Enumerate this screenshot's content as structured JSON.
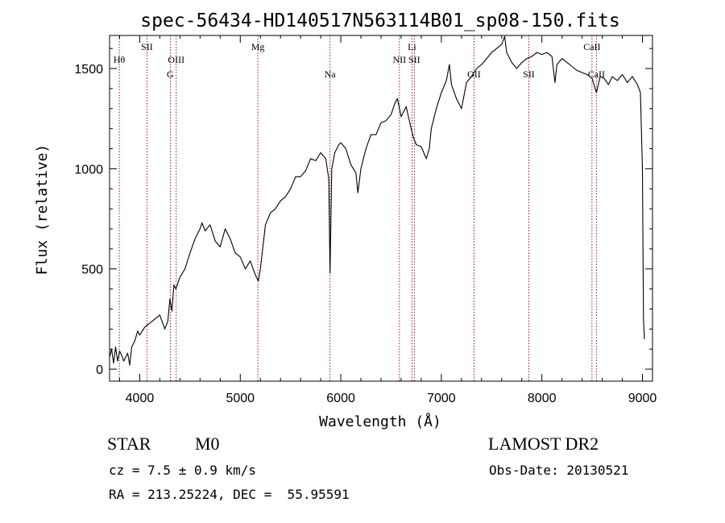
{
  "chart_data": {
    "type": "line",
    "title": "spec-56434-HD140517N563114B01_sp08-150.fits",
    "xlabel": "Wavelength (Å)",
    "ylabel": "Flux (relative)",
    "xlim": [
      3700,
      9100
    ],
    "ylim": [
      -60,
      1665
    ],
    "x_ticks": [
      4000,
      5000,
      6000,
      7000,
      8000,
      9000
    ],
    "x_tick_labels": [
      "4000",
      "5000",
      "6000",
      "7000",
      "8000",
      "9000"
    ],
    "y_ticks": [
      0,
      500,
      1000,
      1500
    ],
    "y_tick_labels": [
      "0",
      "500",
      "1000",
      "1500"
    ],
    "series": [
      {
        "name": "spectrum",
        "x": [
          3700,
          3720,
          3740,
          3760,
          3780,
          3800,
          3820,
          3840,
          3860,
          3880,
          3900,
          3920,
          3950,
          3980,
          4000,
          4050,
          4100,
          4150,
          4200,
          4250,
          4280,
          4300,
          4320,
          4340,
          4360,
          4400,
          4450,
          4500,
          4550,
          4600,
          4620,
          4650,
          4700,
          4750,
          4800,
          4850,
          4900,
          4950,
          5000,
          5050,
          5100,
          5150,
          5180,
          5200,
          5250,
          5300,
          5350,
          5400,
          5450,
          5500,
          5550,
          5600,
          5650,
          5700,
          5750,
          5800,
          5850,
          5880,
          5893,
          5910,
          5940,
          5980,
          6000,
          6050,
          6100,
          6150,
          6170,
          6200,
          6250,
          6300,
          6350,
          6400,
          6450,
          6500,
          6540,
          6563,
          6600,
          6650,
          6700,
          6720,
          6750,
          6800,
          6850,
          6880,
          6900,
          6950,
          7000,
          7050,
          7080,
          7100,
          7150,
          7200,
          7250,
          7300,
          7350,
          7400,
          7450,
          7500,
          7550,
          7600,
          7630,
          7650,
          7700,
          7750,
          7800,
          7850,
          7900,
          7950,
          8000,
          8050,
          8100,
          8130,
          8150,
          8200,
          8250,
          8300,
          8350,
          8400,
          8450,
          8500,
          8542,
          8580,
          8620,
          8662,
          8700,
          8750,
          8800,
          8850,
          8900,
          8950,
          8980,
          9000,
          9010,
          9020
        ],
        "values": [
          60,
          100,
          30,
          110,
          40,
          90,
          70,
          40,
          60,
          80,
          20,
          110,
          140,
          190,
          170,
          210,
          230,
          250,
          270,
          200,
          240,
          350,
          290,
          420,
          400,
          460,
          500,
          580,
          650,
          700,
          730,
          690,
          720,
          640,
          610,
          700,
          650,
          580,
          560,
          500,
          540,
          470,
          440,
          500,
          720,
          780,
          800,
          840,
          860,
          900,
          960,
          960,
          990,
          1050,
          1040,
          1080,
          1050,
          950,
          480,
          1000,
          1080,
          1120,
          1130,
          1100,
          1020,
          980,
          880,
          1000,
          1100,
          1170,
          1170,
          1230,
          1240,
          1270,
          1330,
          1350,
          1260,
          1310,
          1200,
          1160,
          1120,
          1110,
          1050,
          1100,
          1200,
          1300,
          1380,
          1440,
          1520,
          1420,
          1350,
          1300,
          1430,
          1460,
          1500,
          1520,
          1550,
          1580,
          1600,
          1620,
          1660,
          1580,
          1530,
          1500,
          1530,
          1550,
          1560,
          1580,
          1570,
          1580,
          1560,
          1430,
          1520,
          1550,
          1530,
          1510,
          1490,
          1480,
          1470,
          1450,
          1380,
          1460,
          1450,
          1420,
          1460,
          1440,
          1470,
          1430,
          1460,
          1420,
          1380,
          1000,
          250,
          150
        ]
      }
    ],
    "lines": [
      {
        "x": 3797,
        "label": "Hθ",
        "row": 1
      },
      {
        "x": 4072,
        "label": "SII",
        "row": 0
      },
      {
        "x": 4304,
        "label": "G",
        "row": 2
      },
      {
        "x": 4363,
        "label": "OIII",
        "row": 1
      },
      {
        "x": 5175,
        "label": "Mg",
        "row": 0
      },
      {
        "x": 5893,
        "label": "Na",
        "row": 2
      },
      {
        "x": 6583,
        "label": "NII",
        "row": 1
      },
      {
        "x": 6708,
        "label": "Li",
        "row": 0
      },
      {
        "x": 6731,
        "label": "SII",
        "row": 1
      },
      {
        "x": 7325,
        "label": "OII",
        "row": 2
      },
      {
        "x": 7870,
        "label": "SII",
        "row": 2
      },
      {
        "x": 8498,
        "label": "CaII",
        "row": 0
      },
      {
        "x": 8542,
        "label": "CaII",
        "row": 2
      }
    ],
    "line_color": "#8b0000",
    "spectrum_color": "#000000"
  },
  "info": {
    "class_label": "STAR",
    "subclass": "M0",
    "survey": "LAMOST DR2",
    "cz": "cz = 7.5 ± 0.9 km/s",
    "obs_date": "Obs-Date: 20130521",
    "coords": "RA = 213.25224, DEC =  55.95591"
  }
}
